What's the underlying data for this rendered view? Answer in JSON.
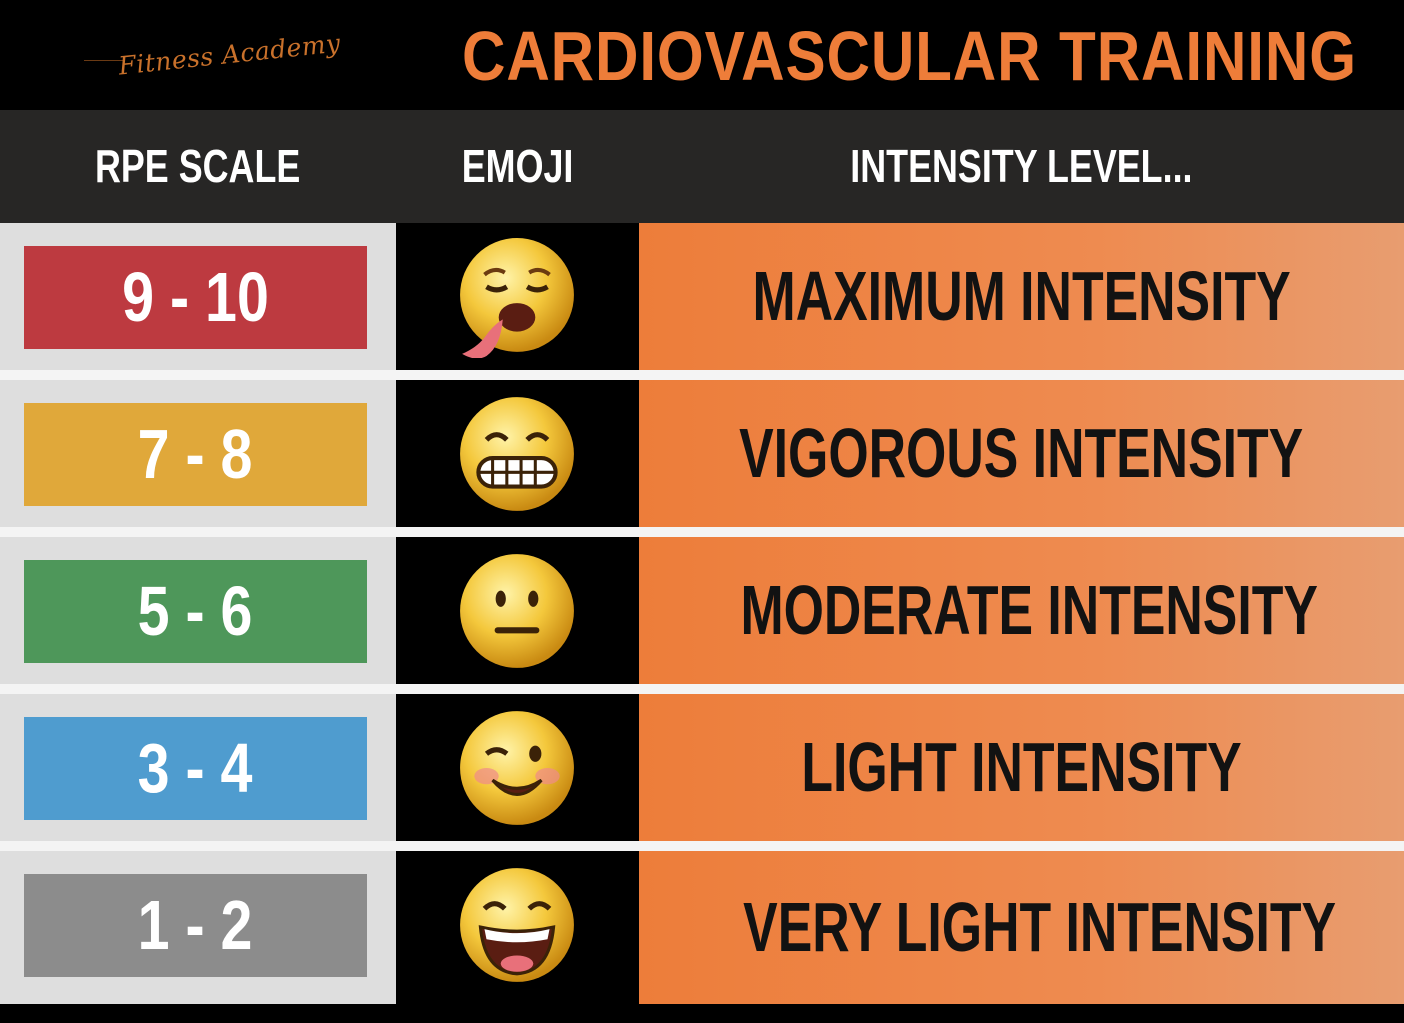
{
  "header": {
    "logo": "Fitness Academy",
    "title": "CARDIOVASCULAR TRAINING"
  },
  "columns": {
    "rpe": "RPE SCALE",
    "emoji": "EMOJI",
    "intensity": "INTENSITY LEVEL..."
  },
  "rows": [
    {
      "rpe": "9 - 10",
      "color": "#bd3a40",
      "emoji": "exhausted-tongue-out-face-icon",
      "intensity": "MAXIMUM INTENSITY"
    },
    {
      "rpe": "7 - 8",
      "color": "#e0a83a",
      "emoji": "grimacing-face-icon",
      "intensity": "VIGOROUS INTENSITY"
    },
    {
      "rpe": "5 - 6",
      "color": "#4e975a",
      "emoji": "neutral-face-icon",
      "intensity": "MODERATE INTENSITY"
    },
    {
      "rpe": "3 - 4",
      "color": "#4f9ccf",
      "emoji": "winking-face-icon",
      "intensity": "LIGHT INTENSITY"
    },
    {
      "rpe": "1 - 2",
      "color": "#8c8c8c",
      "emoji": "grinning-face-icon",
      "intensity": "VERY LIGHT INTENSITY"
    }
  ]
}
